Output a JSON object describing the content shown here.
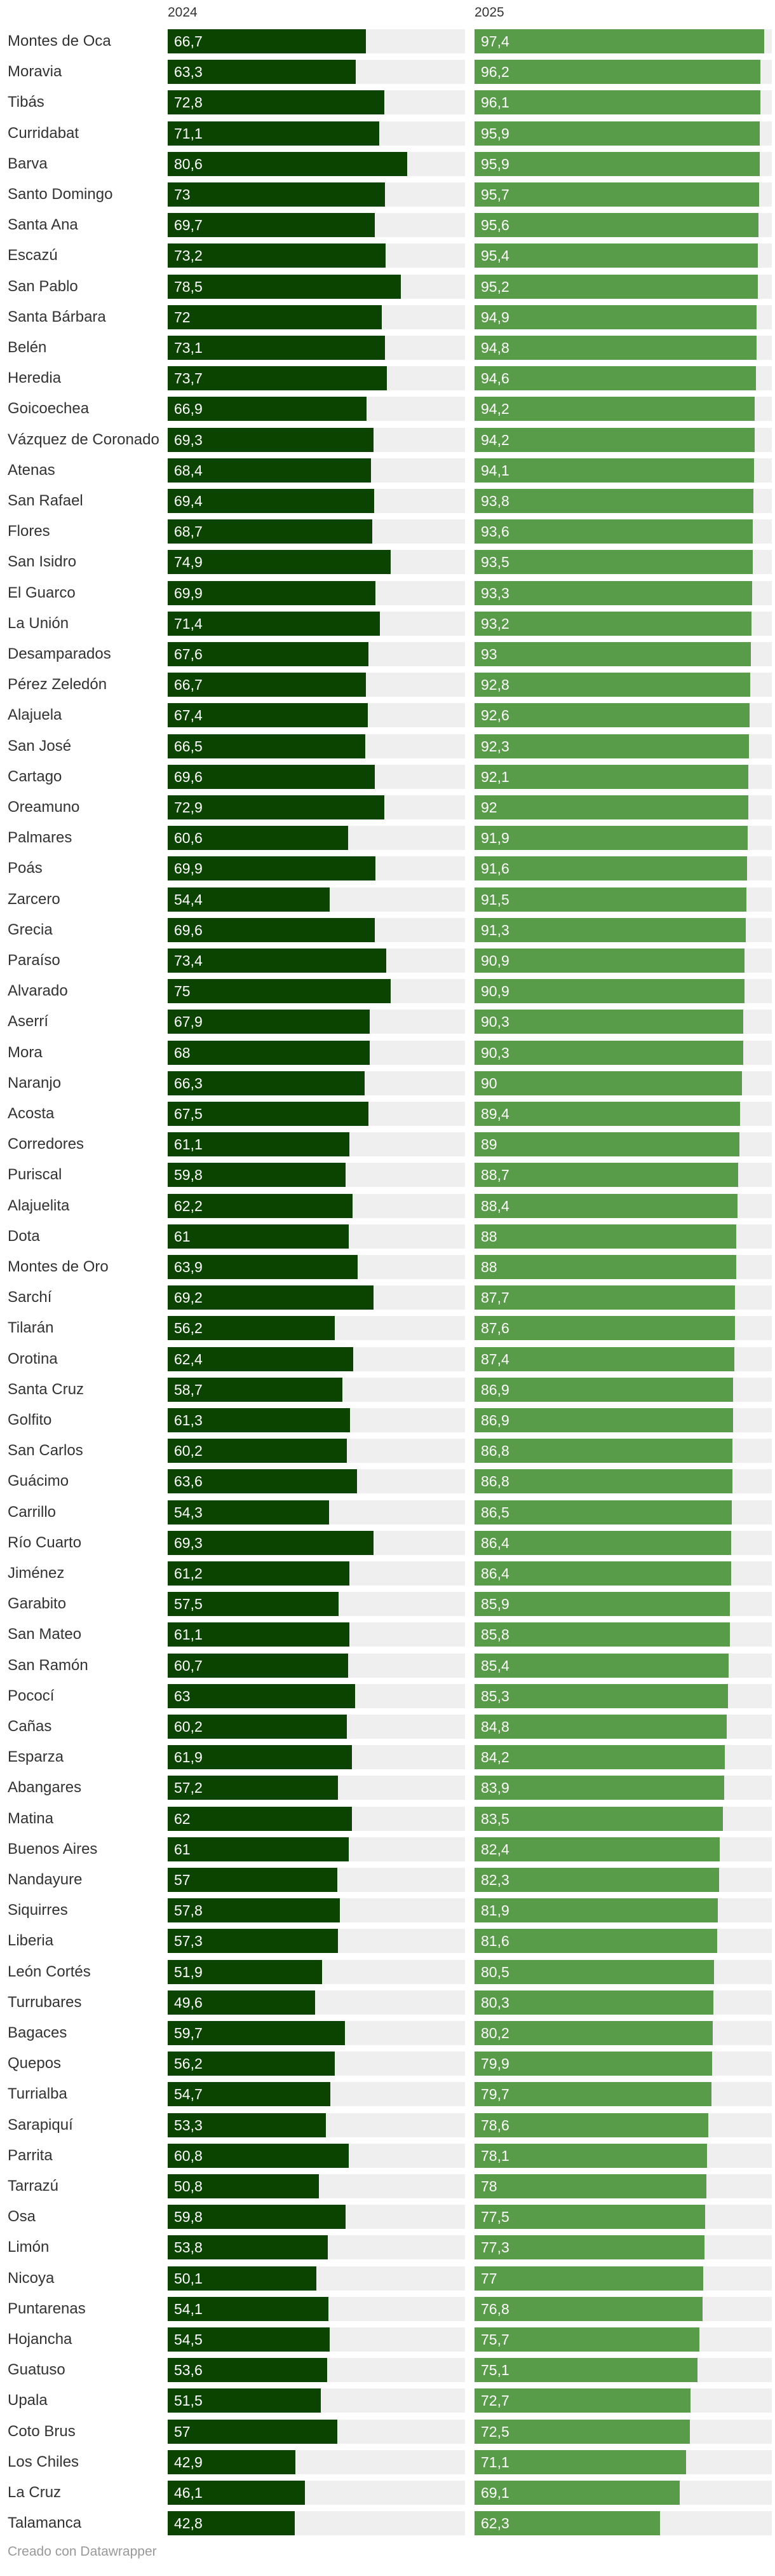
{
  "chart_data": {
    "type": "bar",
    "orientation": "horizontal",
    "layout": "split-bars",
    "xlim": [
      0,
      100
    ],
    "series": [
      {
        "name": "2024",
        "color": "#0b4400",
        "values": [
          66.7,
          63.3,
          72.8,
          71.1,
          80.6,
          73,
          69.7,
          73.2,
          78.5,
          72,
          73.1,
          73.7,
          66.9,
          69.3,
          68.4,
          69.4,
          68.7,
          74.9,
          69.9,
          71.4,
          67.6,
          66.7,
          67.4,
          66.5,
          69.6,
          72.9,
          60.6,
          69.9,
          54.4,
          69.6,
          73.4,
          75,
          67.9,
          68,
          66.3,
          67.5,
          61.1,
          59.8,
          62.2,
          61,
          63.9,
          69.2,
          56.2,
          62.4,
          58.7,
          61.3,
          60.2,
          63.6,
          54.3,
          69.3,
          61.2,
          57.5,
          61.1,
          60.7,
          63,
          60.2,
          61.9,
          57.2,
          62,
          61,
          57,
          57.8,
          57.3,
          51.9,
          49.6,
          59.7,
          56.2,
          54.7,
          53.3,
          60.8,
          50.8,
          59.8,
          53.8,
          50.1,
          54.1,
          54.5,
          53.6,
          51.5,
          57,
          42.9,
          46.1,
          42.8
        ]
      },
      {
        "name": "2025",
        "color": "#589b48",
        "values": [
          97.4,
          96.2,
          96.1,
          95.9,
          95.9,
          95.7,
          95.6,
          95.4,
          95.2,
          94.9,
          94.8,
          94.6,
          94.2,
          94.2,
          94.1,
          93.8,
          93.6,
          93.5,
          93.3,
          93.2,
          93,
          92.8,
          92.6,
          92.3,
          92.1,
          92,
          91.9,
          91.6,
          91.5,
          91.3,
          90.9,
          90.9,
          90.3,
          90.3,
          90,
          89.4,
          89,
          88.7,
          88.4,
          88,
          88,
          87.7,
          87.6,
          87.4,
          86.9,
          86.9,
          86.8,
          86.8,
          86.5,
          86.4,
          86.4,
          85.9,
          85.8,
          85.4,
          85.3,
          84.8,
          84.2,
          83.9,
          83.5,
          82.4,
          82.3,
          81.9,
          81.6,
          80.5,
          80.3,
          80.2,
          79.9,
          79.7,
          78.6,
          78.1,
          78,
          77.5,
          77.3,
          77,
          76.8,
          75.7,
          75.1,
          72.7,
          72.5,
          71.1,
          69.1,
          62.3
        ]
      }
    ],
    "categories": [
      "Montes de Oca",
      "Moravia",
      "Tibás",
      "Curridabat",
      "Barva",
      "Santo Domingo",
      "Santa Ana",
      "Escazú",
      "San Pablo",
      "Santa Bárbara",
      "Belén",
      "Heredia",
      "Goicoechea",
      "Vázquez de Coronado",
      "Atenas",
      "San Rafael",
      "Flores",
      "San Isidro",
      "El Guarco",
      "La Unión",
      "Desamparados",
      "Pérez Zeledón",
      "Alajuela",
      "San José",
      "Cartago",
      "Oreamuno",
      "Palmares",
      "Poás",
      "Zarcero",
      "Grecia",
      "Paraíso",
      "Alvarado",
      "Aserrí",
      "Mora",
      "Naranjo",
      "Acosta",
      "Corredores",
      "Puriscal",
      "Alajuelita",
      "Dota",
      "Montes de Oro",
      "Sarchí",
      "Tilarán",
      "Orotina",
      "Santa Cruz",
      "Golfito",
      "San Carlos",
      "Guácimo",
      "Carrillo",
      "Río Cuarto",
      "Jiménez",
      "Garabito",
      "San Mateo",
      "San Ramón",
      "Pococí",
      "Cañas",
      "Esparza",
      "Abangares",
      "Matina",
      "Buenos Aires",
      "Nandayure",
      "Siquirres",
      "Liberia",
      "León Cortés",
      "Turrubares",
      "Bagaces",
      "Quepos",
      "Turrialba",
      "Sarapiquí",
      "Parrita",
      "Tarrazú",
      "Osa",
      "Limón",
      "Nicoya",
      "Puntarenas",
      "Hojancha",
      "Guatuso",
      "Upala",
      "Coto Brus",
      "Los Chiles",
      "La Cruz",
      "Talamanca"
    ],
    "value_labels": {
      "2024": [
        "66,7",
        "63,3",
        "72,8",
        "71,1",
        "80,6",
        "73",
        "69,7",
        "73,2",
        "78,5",
        "72",
        "73,1",
        "73,7",
        "66,9",
        "69,3",
        "68,4",
        "69,4",
        "68,7",
        "74,9",
        "69,9",
        "71,4",
        "67,6",
        "66,7",
        "67,4",
        "66,5",
        "69,6",
        "72,9",
        "60,6",
        "69,9",
        "54,4",
        "69,6",
        "73,4",
        "75",
        "67,9",
        "68",
        "66,3",
        "67,5",
        "61,1",
        "59,8",
        "62,2",
        "61",
        "63,9",
        "69,2",
        "56,2",
        "62,4",
        "58,7",
        "61,3",
        "60,2",
        "63,6",
        "54,3",
        "69,3",
        "61,2",
        "57,5",
        "61,1",
        "60,7",
        "63",
        "60,2",
        "61,9",
        "57,2",
        "62",
        "61",
        "57",
        "57,8",
        "57,3",
        "51,9",
        "49,6",
        "59,7",
        "56,2",
        "54,7",
        "53,3",
        "60,8",
        "50,8",
        "59,8",
        "53,8",
        "50,1",
        "54,1",
        "54,5",
        "53,6",
        "51,5",
        "57",
        "42,9",
        "46,1",
        "42,8"
      ],
      "2025": [
        "97,4",
        "96,2",
        "96,1",
        "95,9",
        "95,9",
        "95,7",
        "95,6",
        "95,4",
        "95,2",
        "94,9",
        "94,8",
        "94,6",
        "94,2",
        "94,2",
        "94,1",
        "93,8",
        "93,6",
        "93,5",
        "93,3",
        "93,2",
        "93",
        "92,8",
        "92,6",
        "92,3",
        "92,1",
        "92",
        "91,9",
        "91,6",
        "91,5",
        "91,3",
        "90,9",
        "90,9",
        "90,3",
        "90,3",
        "90",
        "89,4",
        "89",
        "88,7",
        "88,4",
        "88",
        "88",
        "87,7",
        "87,6",
        "87,4",
        "86,9",
        "86,9",
        "86,8",
        "86,8",
        "86,5",
        "86,4",
        "86,4",
        "85,9",
        "85,8",
        "85,4",
        "85,3",
        "84,8",
        "84,2",
        "83,9",
        "83,5",
        "82,4",
        "82,3",
        "81,9",
        "81,6",
        "80,5",
        "80,3",
        "80,2",
        "79,9",
        "79,7",
        "78,6",
        "78,1",
        "78",
        "77,5",
        "77,3",
        "77",
        "76,8",
        "75,7",
        "75,1",
        "72,7",
        "72,5",
        "71,1",
        "69,1",
        "62,3"
      ]
    },
    "title": "",
    "xlabel": "",
    "ylabel": ""
  },
  "footer": {
    "credit": "Creado con Datawrapper"
  }
}
